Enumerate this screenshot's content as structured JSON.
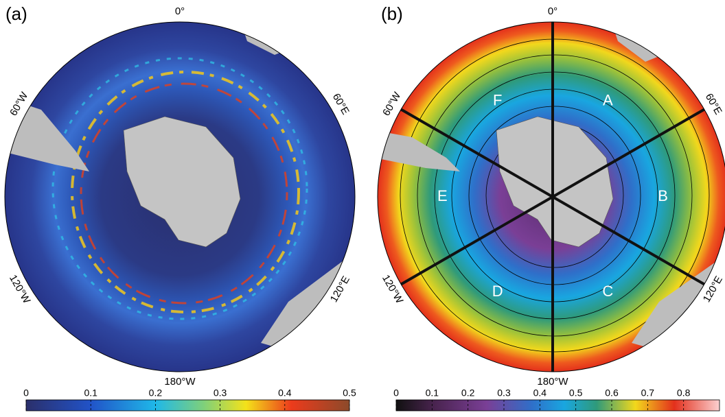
{
  "panels": [
    {
      "label": "(a)",
      "longitude_labels": [
        "0°",
        "60°E",
        "120°E",
        "180°W",
        "120°W",
        "60°W"
      ],
      "colorbar": {
        "lim": [
          0,
          0.5
        ],
        "ticks": [
          0,
          0.1,
          0.2,
          0.3,
          0.4,
          0.5
        ]
      }
    },
    {
      "label": "(b)",
      "longitude_labels": [
        "0°",
        "60°E",
        "120°E",
        "180°W",
        "120°W",
        "60°W"
      ],
      "sectors": [
        "A",
        "B",
        "C",
        "D",
        "E",
        "F"
      ],
      "colorbar": {
        "lim": [
          0,
          0.9
        ],
        "ticks": [
          0,
          0.1,
          0.2,
          0.3,
          0.4,
          0.5,
          0.6,
          0.7,
          0.8
        ]
      }
    }
  ]
}
